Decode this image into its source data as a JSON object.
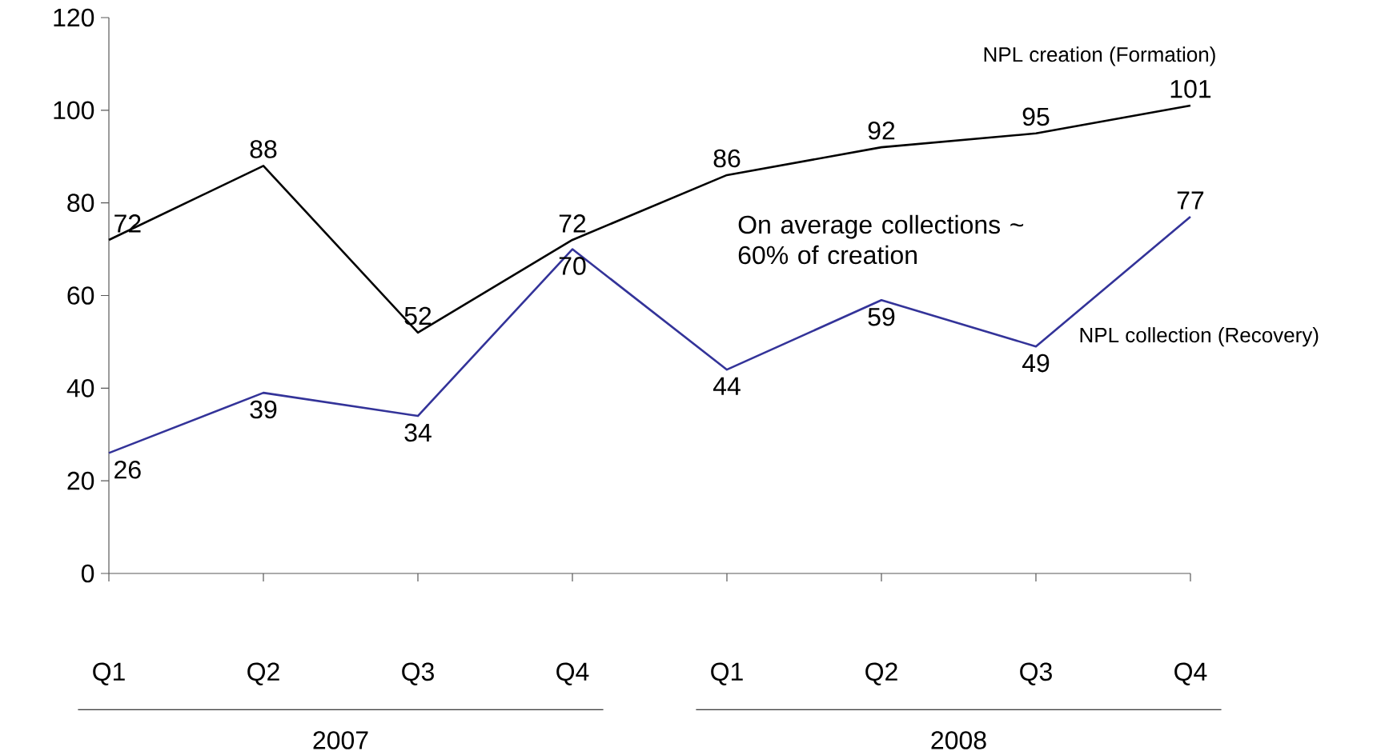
{
  "chart_data": {
    "type": "line",
    "categories": [
      "Q1",
      "Q2",
      "Q3",
      "Q4",
      "Q1",
      "Q2",
      "Q3",
      "Q4"
    ],
    "series": [
      {
        "name": "NPL creation (Formation)",
        "color": "#000000",
        "values": [
          72,
          88,
          52,
          72,
          86,
          92,
          95,
          101
        ]
      },
      {
        "name": "NPL collection (Recovery)",
        "color": "#333399",
        "values": [
          26,
          39,
          34,
          70,
          44,
          59,
          49,
          77
        ]
      }
    ],
    "ylim": [
      0,
      120
    ],
    "yticks": [
      0,
      20,
      40,
      60,
      80,
      100,
      120
    ],
    "data_labels": true,
    "legend": false,
    "grid": false,
    "marker": "none",
    "line_style": "solid",
    "annotations": [
      "On average collections ~ 60% of creation",
      "2007",
      "2008"
    ]
  }
}
